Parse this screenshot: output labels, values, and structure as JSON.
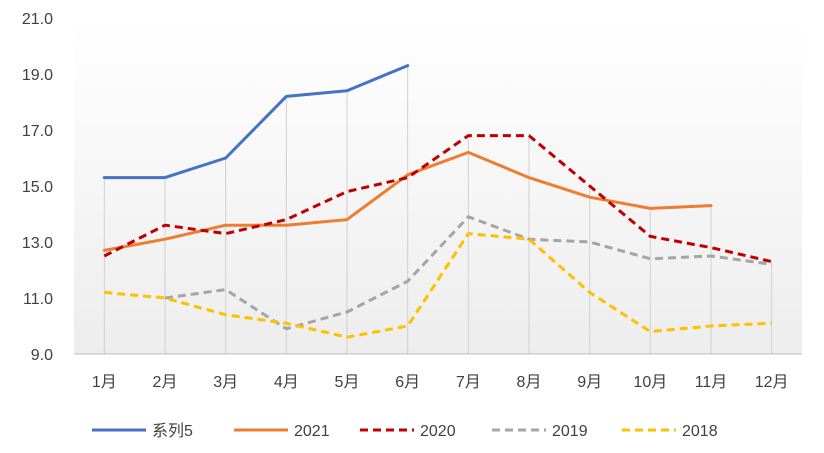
{
  "chart_data": {
    "type": "line",
    "title": "",
    "xlabel": "",
    "ylabel": "",
    "categories": [
      "1月",
      "2月",
      "3月",
      "4月",
      "5月",
      "6月",
      "7月",
      "8月",
      "9月",
      "10月",
      "11月",
      "12月"
    ],
    "ylim": [
      9.0,
      21.0
    ],
    "yticks": [
      "9.0",
      "11.0",
      "13.0",
      "15.0",
      "17.0",
      "19.0",
      "21.0"
    ],
    "grid": "vertical drop lines",
    "legend_position": "bottom",
    "series": [
      {
        "name": "系列5",
        "color": "#4472C4",
        "dash": "solid",
        "values": [
          15.3,
          15.3,
          16.0,
          18.2,
          18.4,
          19.3,
          null,
          null,
          null,
          null,
          null,
          null
        ]
      },
      {
        "name": "2021",
        "color": "#ED7D31",
        "dash": "solid",
        "values": [
          12.7,
          13.1,
          13.6,
          13.6,
          13.8,
          15.4,
          16.2,
          15.3,
          14.6,
          14.2,
          14.3,
          null
        ]
      },
      {
        "name": "2020",
        "color": "#C00000",
        "dash": "dash",
        "values": [
          12.5,
          13.6,
          13.3,
          13.8,
          14.8,
          15.3,
          16.8,
          16.8,
          15.0,
          13.2,
          12.8,
          12.3
        ]
      },
      {
        "name": "2019",
        "color": "#A5A5A5",
        "dash": "dash",
        "values": [
          null,
          11.0,
          11.3,
          9.9,
          10.5,
          11.6,
          13.9,
          13.1,
          13.0,
          12.4,
          12.5,
          12.2
        ]
      },
      {
        "name": "2018",
        "color": "#FFC000",
        "dash": "dash",
        "values": [
          11.2,
          11.0,
          10.4,
          10.1,
          9.6,
          10.0,
          13.3,
          13.1,
          11.2,
          9.8,
          10.0,
          10.1
        ]
      }
    ]
  }
}
